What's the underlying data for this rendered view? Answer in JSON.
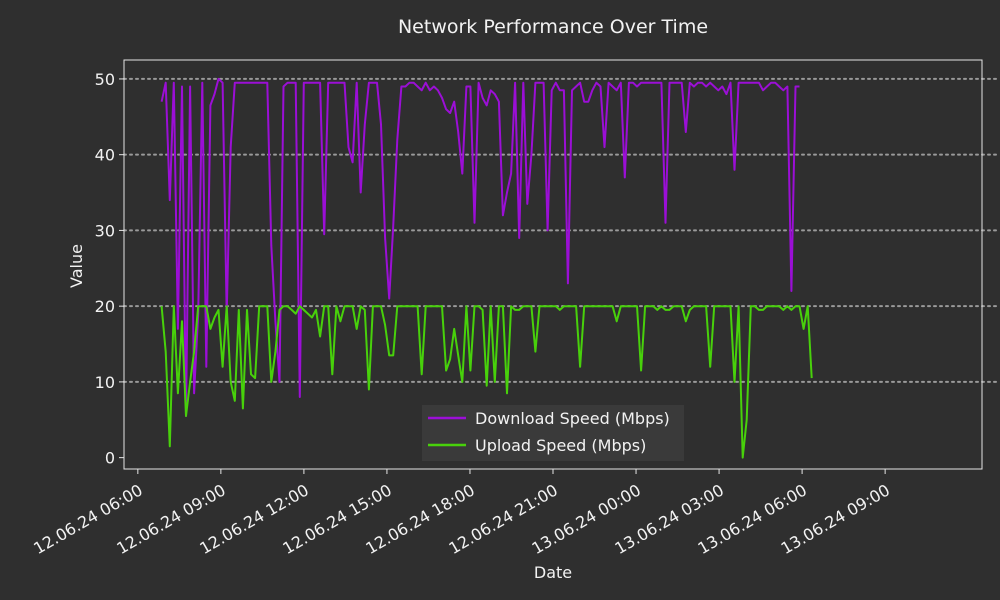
{
  "colors": {
    "background": "#2f2f2f",
    "text": "#f2f2f2",
    "grid": "#9a9a9a",
    "download": "#9b0fd6",
    "upload": "#48d10b",
    "legend_bg": "#3a3a3a"
  },
  "chart_data": {
    "type": "line",
    "title": "Network Performance Over Time",
    "xlabel": "Date",
    "ylabel": "Value",
    "x_range": [
      "12.06.24 05:30",
      "13.06.24 12:30"
    ],
    "xlim": [
      0,
      31
    ],
    "ylim": [
      -1.5,
      52.5
    ],
    "yticks": [
      0,
      10,
      20,
      30,
      40,
      50
    ],
    "xticks": [
      {
        "h": 0.5,
        "label": "12.06.24 06:00"
      },
      {
        "h": 3.5,
        "label": "12.06.24 09:00"
      },
      {
        "h": 6.5,
        "label": "12.06.24 12:00"
      },
      {
        "h": 9.5,
        "label": "12.06.24 15:00"
      },
      {
        "h": 12.5,
        "label": "12.06.24 18:00"
      },
      {
        "h": 15.5,
        "label": "12.06.24 21:00"
      },
      {
        "h": 18.5,
        "label": "13.06.24 00:00"
      },
      {
        "h": 21.5,
        "label": "13.06.24 03:00"
      },
      {
        "h": 24.5,
        "label": "13.06.24 06:00"
      },
      {
        "h": 27.5,
        "label": "13.06.24 09:00"
      }
    ],
    "grid": {
      "axis": "y",
      "style": "dotted"
    },
    "legend_position": "lower center",
    "x_start": 1.36,
    "x_step": 0.1468,
    "series": [
      {
        "name": "Download Speed (Mbps)",
        "color": "#9b0fd6",
        "values": [
          47,
          49.5,
          34,
          49.5,
          17,
          49,
          5.5,
          49,
          8.5,
          19,
          49.5,
          12,
          46.5,
          48,
          50,
          49.5,
          19,
          41,
          49.5,
          49.5,
          49.5,
          49.5,
          49.5,
          49.5,
          49.5,
          49.5,
          49.5,
          28,
          18,
          10,
          49,
          49.5,
          49.5,
          49.5,
          8,
          49.5,
          49.5,
          49.5,
          49.5,
          49.5,
          29.5,
          49.5,
          49.5,
          49.5,
          49.5,
          49.5,
          41,
          39,
          49.5,
          35,
          44,
          49.5,
          49.5,
          49.5,
          44,
          29,
          21,
          30.5,
          42,
          49,
          49,
          49.5,
          49.5,
          49,
          48.5,
          49.5,
          48.5,
          49,
          48.5,
          47.5,
          46,
          45.5,
          47,
          43,
          37.5,
          49,
          49,
          31,
          49.5,
          47.5,
          46.5,
          48.5,
          48,
          47,
          32,
          35,
          37.5,
          49.5,
          29,
          49.5,
          33.5,
          40,
          49.5,
          49.5,
          49.5,
          30,
          48.5,
          49.5,
          48.5,
          48.5,
          23,
          48.5,
          49,
          49.5,
          47,
          47,
          48.5,
          49.5,
          49,
          41,
          49.5,
          49,
          48.5,
          49.5,
          37,
          49.5,
          49.5,
          49,
          49.5,
          49.5,
          49.5,
          49.5,
          49.5,
          49.5,
          31,
          49.5,
          49.5,
          49.5,
          49.5,
          43,
          49.5,
          49,
          49.5,
          49.5,
          49,
          49.5,
          49,
          48.5,
          49,
          48,
          49.5,
          38,
          49.5,
          49.5,
          49.5,
          49.5,
          49.5,
          49.5,
          48.5,
          49,
          49.5,
          49.5,
          49,
          48.5,
          49,
          22,
          49,
          49
        ]
      },
      {
        "name": "Upload Speed (Mbps)",
        "color": "#48d10b",
        "values": [
          20,
          14,
          1.5,
          20,
          8.5,
          18,
          5.5,
          10,
          14,
          20,
          20,
          20,
          17,
          18.5,
          19.5,
          12,
          20,
          10,
          7.5,
          19.5,
          6.5,
          19.5,
          11,
          10.5,
          20,
          20,
          20,
          10,
          14,
          19.5,
          20,
          20,
          19.5,
          19,
          20,
          19.5,
          19,
          18.5,
          19.5,
          16,
          20,
          20,
          11,
          20,
          18,
          20,
          20,
          20,
          17,
          20,
          19.5,
          9,
          20,
          20,
          20,
          17.5,
          13.5,
          13.5,
          20,
          20,
          20,
          20,
          20,
          20,
          11,
          20,
          20,
          20,
          20,
          20,
          11.5,
          13,
          17,
          13.5,
          10,
          20,
          11.5,
          20,
          20,
          19.5,
          9.5,
          20,
          10,
          20,
          20,
          8.5,
          20,
          19.5,
          19.5,
          20,
          20,
          20,
          14,
          20,
          20,
          20,
          20,
          20,
          19.5,
          20,
          20,
          20,
          20,
          12,
          20,
          20,
          20,
          20,
          20,
          20,
          20,
          20,
          18,
          20,
          20,
          20,
          20,
          20,
          11.5,
          20,
          20,
          20,
          19.5,
          20,
          19.5,
          19.5,
          20,
          20,
          20,
          18,
          19.5,
          20,
          20,
          20,
          20,
          12,
          20,
          20,
          20,
          20,
          20,
          10,
          20,
          0,
          5,
          20,
          20,
          19.5,
          19.5,
          20,
          20,
          20,
          20,
          19.5,
          20,
          19.5,
          20,
          20,
          17,
          20,
          10.5
        ]
      }
    ]
  }
}
